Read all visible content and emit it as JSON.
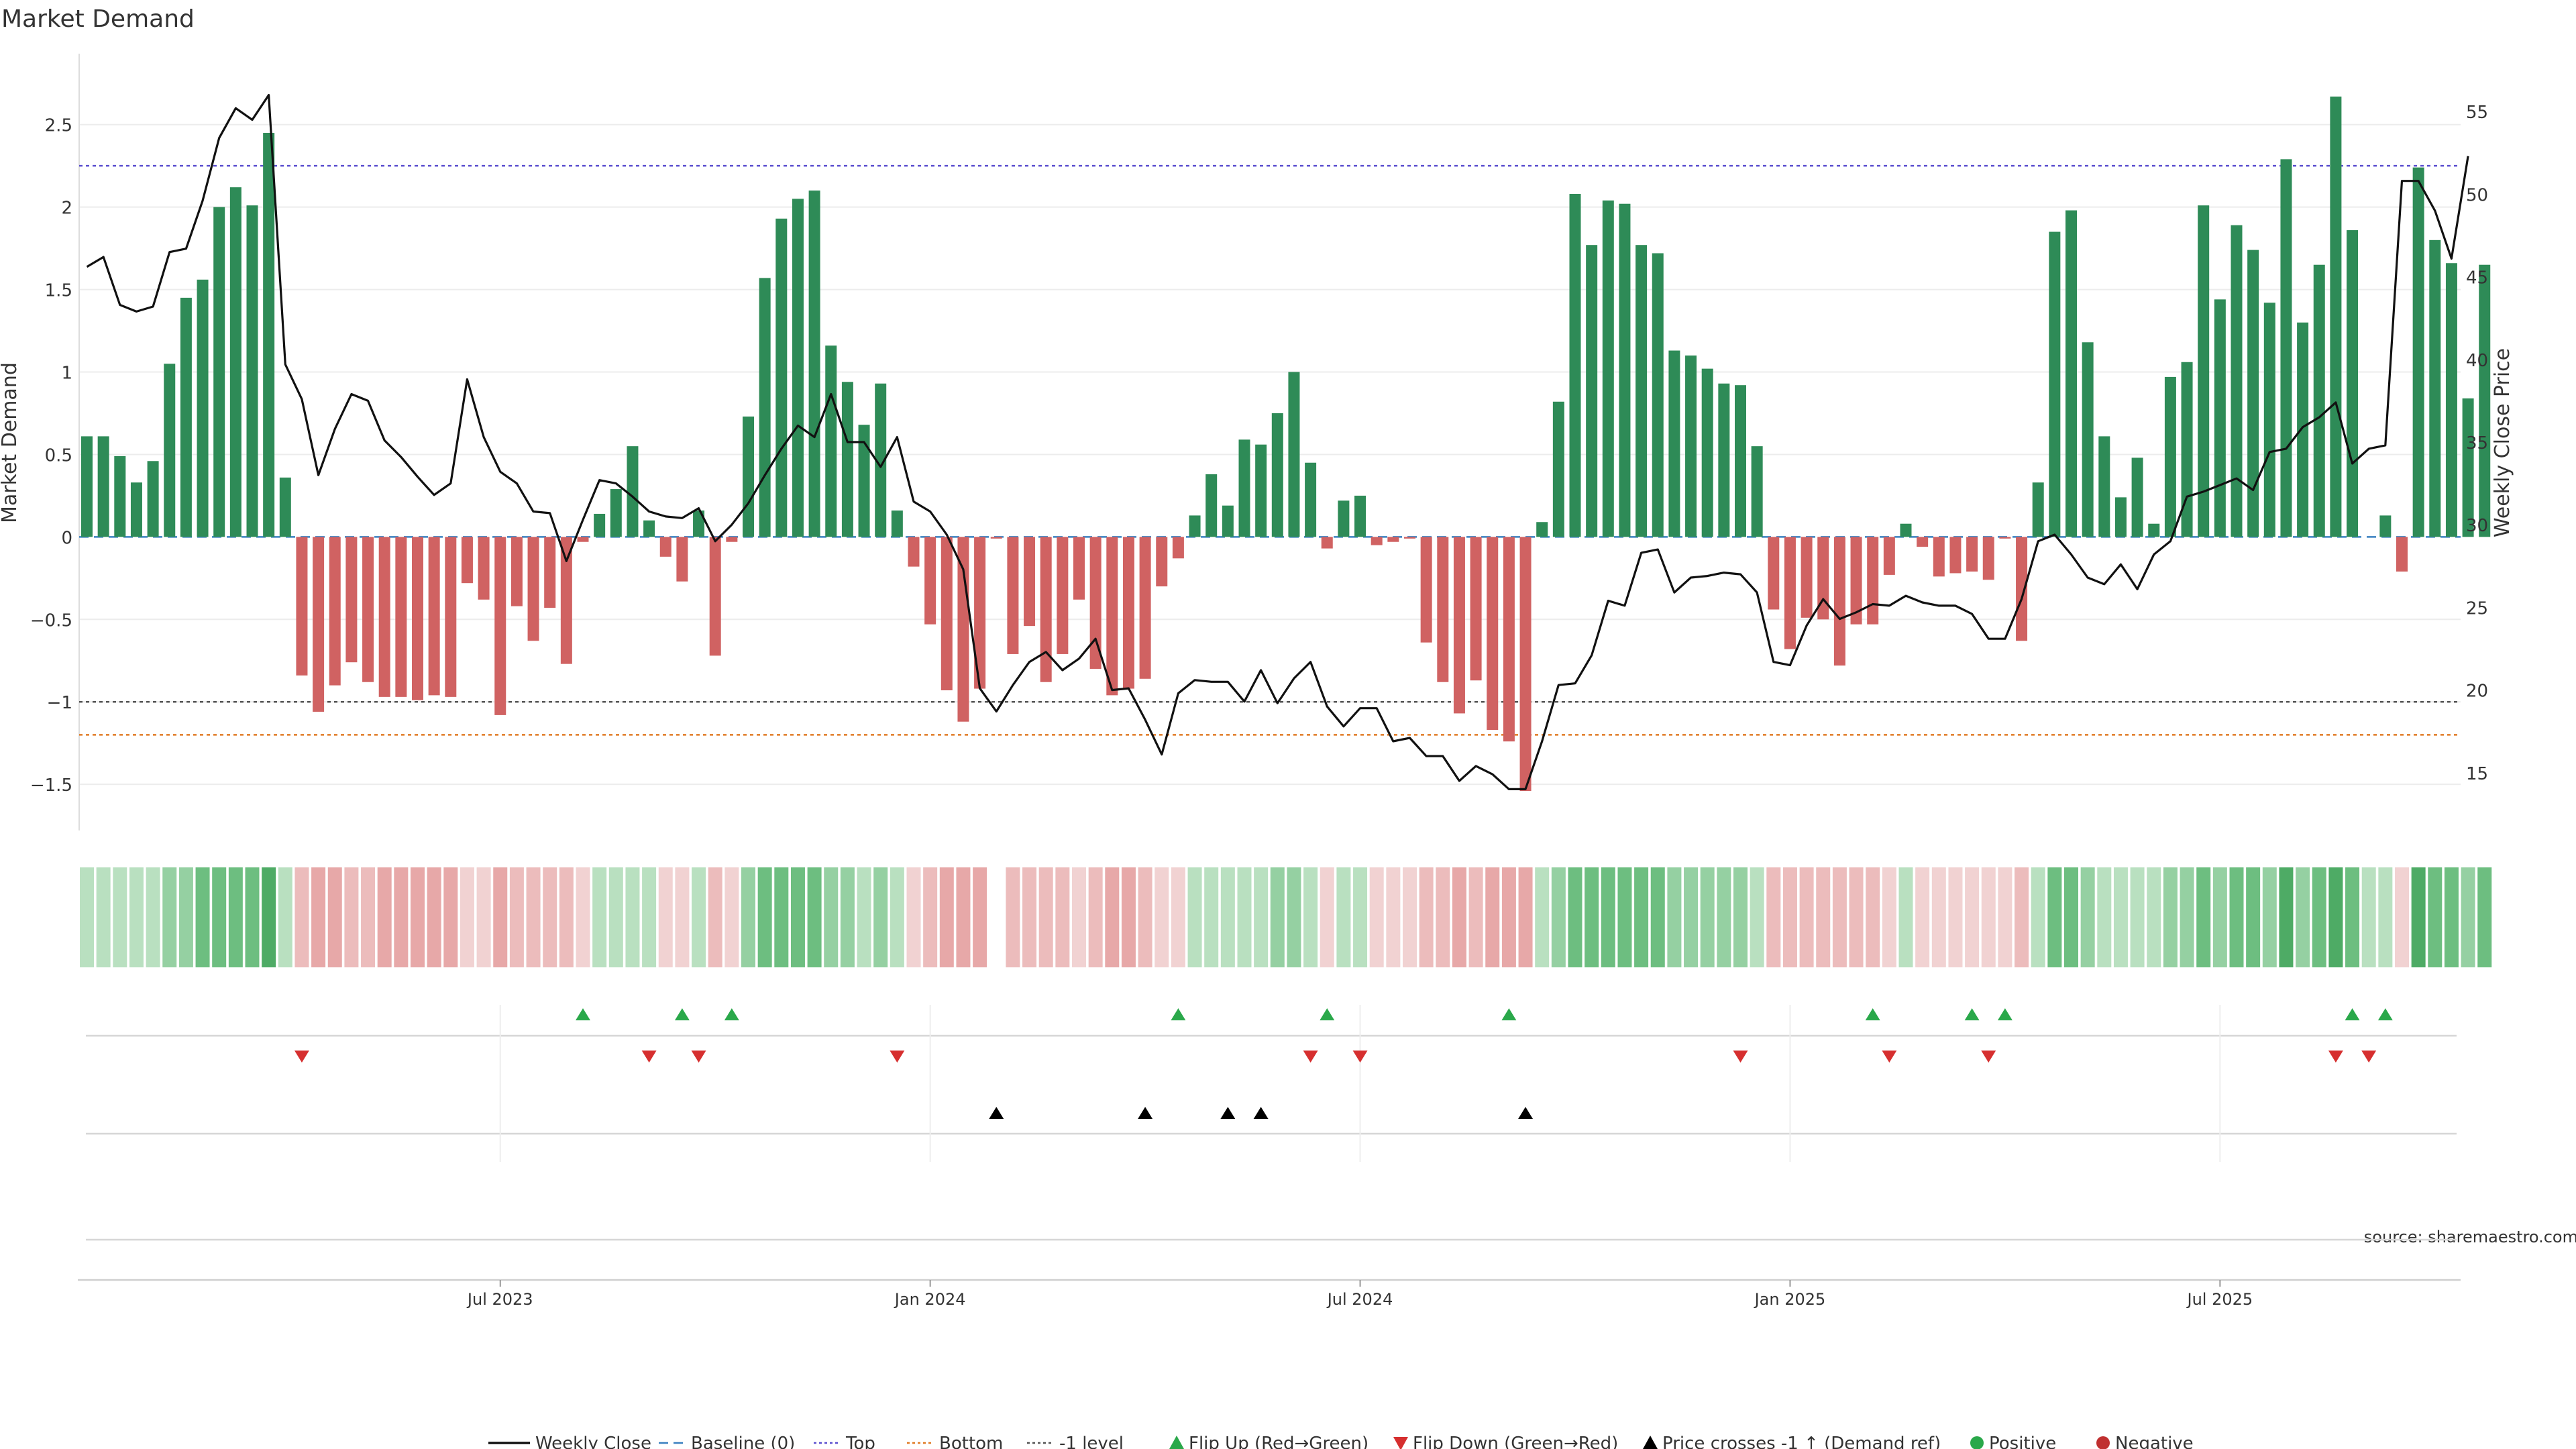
{
  "chart_data": {
    "type": "bar",
    "title": "Market Demand",
    "ylabel": "Market Demand",
    "y2label": "Weekly Close Price",
    "source": "source: sharemaestro.com",
    "ylim": [
      -1.78,
      2.93
    ],
    "y2lim": [
      11.5,
      58.5
    ],
    "yticks": [
      -1.5,
      -1,
      -0.5,
      0,
      0.5,
      1,
      1.5,
      2,
      2.5
    ],
    "ytick_labels": [
      "−1.5",
      "−1",
      "−0.5",
      "0",
      "0.5",
      "1",
      "1.5",
      "2",
      "2.5"
    ],
    "y2ticks": [
      15,
      20,
      25,
      30,
      35,
      40,
      45,
      50,
      55
    ],
    "y2tick_labels": [
      "15",
      "20",
      "25",
      "30",
      "35",
      "40",
      "45",
      "50",
      "55"
    ],
    "x_start": "2023-01-08",
    "week_count": 144,
    "xticks": [
      {
        "week": 25,
        "label": "Jul 2023"
      },
      {
        "week": 51,
        "label": "Jan 2024"
      },
      {
        "week": 77,
        "label": "Jul 2024"
      },
      {
        "week": 103,
        "label": "Jan 2025"
      },
      {
        "week": 129,
        "label": "Jul 2025"
      }
    ],
    "levels": {
      "top": 2.25,
      "bottom": -1.2,
      "minus_one": -1
    },
    "series": [
      {
        "name": "Market Demand",
        "axis": "left",
        "kind": "bar",
        "values": [
          0.61,
          0.61,
          0.49,
          0.33,
          0.46,
          1.05,
          1.45,
          1.56,
          2.0,
          2.12,
          2.01,
          2.45,
          0.36,
          -0.84,
          -1.06,
          -0.9,
          -0.76,
          -0.88,
          -0.97,
          -0.97,
          -0.99,
          -0.96,
          -0.97,
          -0.28,
          -0.38,
          -1.08,
          -0.42,
          -0.63,
          -0.43,
          -0.77,
          -0.03,
          0.14,
          0.29,
          0.55,
          0.1,
          -0.12,
          -0.27,
          0.16,
          -0.72,
          -0.03,
          0.73,
          1.57,
          1.93,
          2.05,
          2.1,
          1.16,
          0.94,
          0.68,
          0.93,
          0.16,
          -0.18,
          -0.53,
          -0.93,
          -1.12,
          -0.92,
          -0.01,
          -0.71,
          -0.54,
          -0.88,
          -0.71,
          -0.38,
          -0.8,
          -0.96,
          -0.92,
          -0.86,
          -0.3,
          -0.13,
          0.13,
          0.38,
          0.19,
          0.59,
          0.56,
          0.75,
          1.0,
          0.45,
          -0.07,
          0.22,
          0.25,
          -0.05,
          -0.03,
          -0.01,
          -0.64,
          -0.88,
          -1.07,
          -0.87,
          -1.17,
          -1.24,
          -1.54,
          0.09,
          0.82,
          2.08,
          1.77,
          2.04,
          2.02,
          1.77,
          1.72,
          1.13,
          1.1,
          1.02,
          0.93,
          0.92,
          0.55,
          -0.44,
          -0.68,
          -0.49,
          -0.5,
          -0.78,
          -0.53,
          -0.53,
          -0.23,
          0.08,
          -0.06,
          -0.24,
          -0.22,
          -0.21,
          -0.26,
          -0.01,
          -0.63,
          0.33,
          1.85,
          1.98,
          1.18,
          0.61,
          0.24,
          0.48,
          0.08,
          0.97,
          1.06,
          2.01,
          1.44,
          1.89,
          1.74,
          1.42,
          2.29,
          1.3,
          1.65,
          2.67,
          1.86,
          0.0,
          0.13,
          -0.21,
          2.24,
          1.8,
          1.66,
          0.84,
          1.65
        ]
      },
      {
        "name": "Weekly Close",
        "axis": "right",
        "kind": "line",
        "values": [
          45.6,
          46.2,
          43.3,
          42.9,
          43.2,
          46.5,
          46.7,
          49.6,
          53.4,
          55.2,
          54.5,
          56.0,
          39.7,
          37.6,
          33.0,
          35.8,
          37.9,
          37.5,
          35.1,
          34.1,
          32.9,
          31.8,
          32.5,
          38.8,
          35.3,
          33.2,
          32.5,
          30.8,
          30.7,
          27.8,
          30.3,
          32.7,
          32.5,
          31.7,
          30.8,
          30.5,
          30.4,
          31.0,
          29.0,
          30.0,
          31.3,
          33.0,
          34.6,
          36.0,
          35.3,
          37.9,
          35.0,
          35.0,
          33.5,
          35.3,
          31.4,
          30.8,
          29.4,
          27.3,
          20.1,
          18.7,
          20.3,
          21.7,
          22.3,
          21.2,
          21.9,
          23.1,
          20.0,
          20.1,
          18.2,
          16.1,
          19.8,
          20.6,
          20.5,
          20.5,
          19.3,
          21.2,
          19.2,
          20.7,
          21.7,
          19.0,
          17.8,
          18.9,
          18.9,
          16.9,
          17.1,
          16.0,
          16.0,
          14.5,
          15.4,
          14.9,
          14.0,
          14.0,
          16.9,
          20.3,
          20.4,
          22.1,
          25.4,
          25.1,
          28.3,
          28.5,
          25.9,
          26.8,
          26.9,
          27.1,
          27.0,
          25.9,
          21.7,
          21.5,
          23.9,
          25.5,
          24.3,
          24.7,
          25.2,
          25.1,
          25.7,
          25.3,
          25.1,
          25.1,
          24.6,
          23.1,
          23.1,
          25.5,
          29.0,
          29.4,
          28.2,
          26.8,
          26.4,
          27.6,
          26.1,
          28.2,
          29.0,
          31.7,
          32.0,
          32.4,
          32.8,
          32.1,
          34.4,
          34.6,
          35.9,
          36.5,
          37.4,
          33.7,
          34.6,
          34.8,
          50.8,
          50.8,
          49.0,
          46.1,
          52.3
        ]
      }
    ],
    "heat_strip": {
      "name": "Demand strip",
      "empty_weeks": [
        55
      ],
      "note": "one cell per week, green = positive demand, red = negative, shade by magnitude"
    },
    "events": {
      "flip_up_weeks": [
        30,
        36,
        39,
        66,
        75,
        86,
        108,
        114,
        116,
        137,
        139
      ],
      "flip_down_weeks": [
        13,
        34,
        37,
        49,
        74,
        77,
        100,
        109,
        115,
        136,
        138
      ],
      "price_cross_weeks": [
        55,
        64,
        69,
        71,
        87
      ]
    },
    "legend": {
      "position": "bottom-center",
      "items": [
        {
          "label": "Weekly Close",
          "symbol": "line",
          "color": "#111111"
        },
        {
          "label": "Baseline (0)",
          "symbol": "dash",
          "color": "#3a80c0"
        },
        {
          "label": "Top",
          "symbol": "dotted",
          "color": "#5b4fcf"
        },
        {
          "label": "Bottom",
          "symbol": "dotted",
          "color": "#e07b25"
        },
        {
          "label": "-1 level",
          "symbol": "dotted",
          "color": "#555555"
        },
        {
          "label": "Flip Up (Red→Green)",
          "symbol": "triangle-up",
          "color": "#2aa84a"
        },
        {
          "label": "Flip Down (Green→Red)",
          "symbol": "triangle-down",
          "color": "#d62f2f"
        },
        {
          "label": "Price crosses -1 ↑ (Demand ref)",
          "symbol": "triangle-up",
          "color": "#000000"
        },
        {
          "label": "Positive",
          "symbol": "circle",
          "color": "#2aa84a"
        },
        {
          "label": "Negative",
          "symbol": "circle",
          "color": "#c03030"
        }
      ]
    }
  },
  "colors": {
    "bar_positive": "#2e8b57",
    "bar_negative": "#d06262",
    "price_line": "#111111",
    "grid": "#ececec"
  }
}
